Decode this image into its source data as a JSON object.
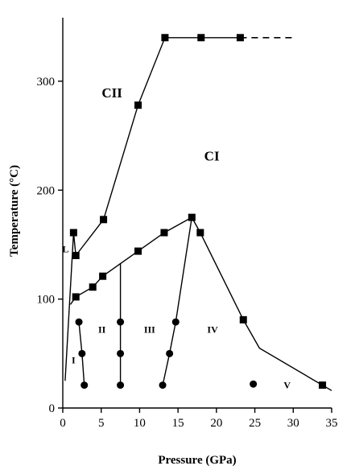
{
  "chart_data": {
    "type": "scatter",
    "title": "",
    "xlabel": "Pressure (GPa)",
    "ylabel": "Temperature (°C)",
    "xlim": [
      0,
      35
    ],
    "ylim": [
      0,
      345
    ],
    "x_ticks": [
      0,
      5,
      10,
      15,
      20,
      25,
      30,
      35
    ],
    "y_ticks": [
      0,
      100,
      200,
      300
    ],
    "grid": false,
    "legend": "none",
    "series": [
      {
        "marker": "square",
        "points": [
          [
            1.4,
            161
          ],
          [
            1.7,
            140
          ],
          [
            1.7,
            102
          ],
          [
            3.9,
            111
          ],
          [
            5.2,
            121
          ],
          [
            9.8,
            144
          ],
          [
            13.2,
            161
          ],
          [
            16.8,
            175
          ],
          [
            17.9,
            161
          ],
          [
            23.5,
            81
          ],
          [
            33.8,
            21
          ],
          [
            5.3,
            173
          ],
          [
            9.8,
            278
          ],
          [
            13.3,
            340
          ],
          [
            18.0,
            340
          ],
          [
            23.1,
            340
          ]
        ]
      },
      {
        "marker": "circle",
        "points": [
          [
            2.1,
            79
          ],
          [
            2.5,
            50
          ],
          [
            2.8,
            21
          ],
          [
            7.5,
            79
          ],
          [
            7.5,
            50
          ],
          [
            7.5,
            21
          ],
          [
            13.0,
            21
          ],
          [
            13.9,
            50
          ],
          [
            14.7,
            79
          ],
          [
            24.8,
            22
          ]
        ]
      }
    ],
    "boundaries": [
      {
        "points": [
          [
            0.3,
            25
          ],
          [
            1.4,
            161
          ]
        ]
      },
      {
        "points": [
          [
            1.4,
            161
          ],
          [
            1.7,
            140
          ]
        ]
      },
      {
        "points": [
          [
            1.7,
            140
          ],
          [
            5.3,
            173
          ],
          [
            9.8,
            278
          ],
          [
            13.3,
            340
          ],
          [
            23.1,
            340
          ]
        ]
      },
      {
        "points": [
          [
            23.1,
            340
          ],
          [
            30.0,
            340
          ]
        ],
        "style": "dashed"
      },
      {
        "points": [
          [
            1.0,
            95
          ],
          [
            1.7,
            102
          ],
          [
            3.9,
            111
          ],
          [
            5.2,
            121
          ],
          [
            9.8,
            144
          ],
          [
            13.2,
            161
          ],
          [
            16.8,
            175
          ]
        ]
      },
      {
        "points": [
          [
            16.8,
            175
          ],
          [
            17.9,
            161
          ],
          [
            23.5,
            81
          ],
          [
            25.6,
            55
          ],
          [
            33.8,
            21
          ],
          [
            35.0,
            16
          ]
        ]
      },
      {
        "points": [
          [
            13.0,
            21
          ],
          [
            13.9,
            50
          ],
          [
            14.7,
            79
          ],
          [
            16.8,
            175
          ]
        ]
      },
      {
        "points": [
          [
            7.5,
            21
          ],
          [
            7.5,
            133
          ]
        ]
      },
      {
        "points": [
          [
            2.1,
            79
          ],
          [
            2.5,
            50
          ],
          [
            2.8,
            21
          ]
        ]
      }
    ],
    "regions": [
      {
        "label": "CII",
        "x": 6.4,
        "y": 285,
        "size": "large"
      },
      {
        "label": "CI",
        "x": 19.4,
        "y": 227,
        "size": "large"
      },
      {
        "label": "L",
        "x": 0.35,
        "y": 143,
        "size": "small"
      },
      {
        "label": "I",
        "x": 1.4,
        "y": 41,
        "size": "small"
      },
      {
        "label": "II",
        "x": 5.1,
        "y": 69,
        "size": "small"
      },
      {
        "label": "III",
        "x": 11.3,
        "y": 69,
        "size": "small"
      },
      {
        "label": "IV",
        "x": 19.5,
        "y": 69,
        "size": "small"
      },
      {
        "label": "V",
        "x": 29.2,
        "y": 18,
        "size": "small"
      }
    ]
  }
}
